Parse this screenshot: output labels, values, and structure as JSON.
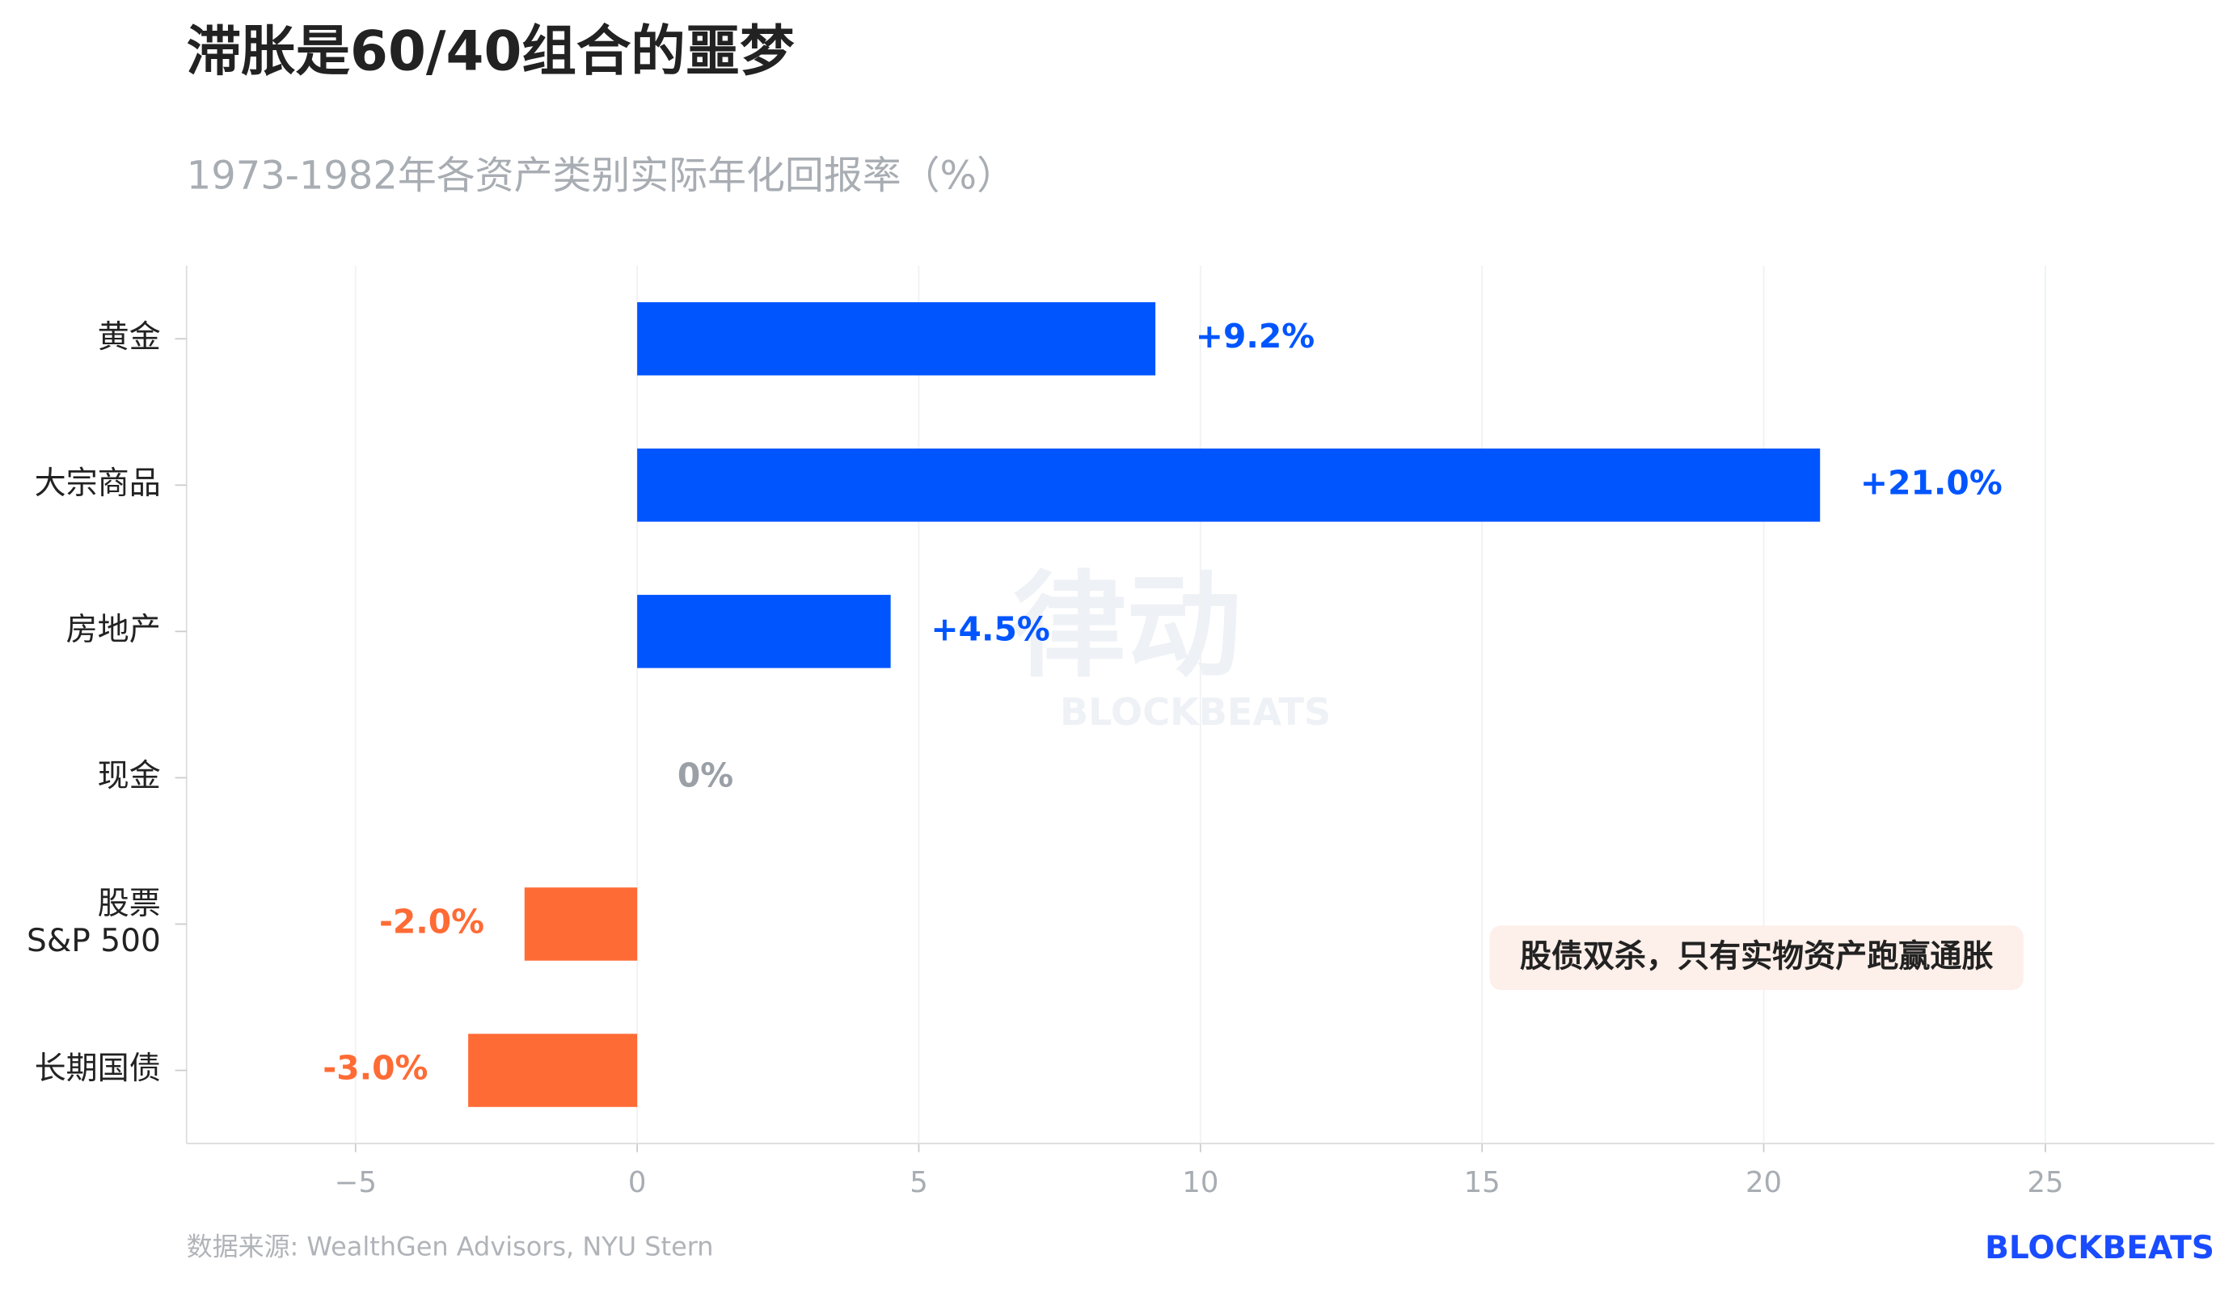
{
  "chart_data": {
    "type": "hbar",
    "title": "滞胀是60/40组合的噩梦",
    "subtitle": "1973-1982年各资产类别实际年化回报率（%）",
    "categories": [
      "黄金",
      "大宗商品",
      "房地产",
      "现金",
      "股票\nS&P 500",
      "长期国债"
    ],
    "values": [
      9.2,
      21.0,
      4.5,
      0,
      -2.0,
      -3.0
    ],
    "value_labels": [
      "+9.2%",
      "+21.0%",
      "+4.5%",
      "0%",
      "-2.0%",
      "-3.0%"
    ],
    "colors": [
      "#0055ff",
      "#0055ff",
      "#0055ff",
      "#9aa0a6",
      "#ff6b35",
      "#ff6b35"
    ],
    "xlim": [
      -8,
      28
    ],
    "xticks": [
      {
        "value": -5,
        "label": "−5"
      },
      0,
      5,
      10,
      15,
      20,
      25
    ],
    "grid": true,
    "annotation": "股债双杀，只有实物资产跑赢通胀",
    "source": "数据来源: WealthGen Advisors, NYU Stern",
    "logo": "BLOCKBEATS",
    "watermark": [
      "律动",
      "BLOCKBEATS"
    ]
  }
}
